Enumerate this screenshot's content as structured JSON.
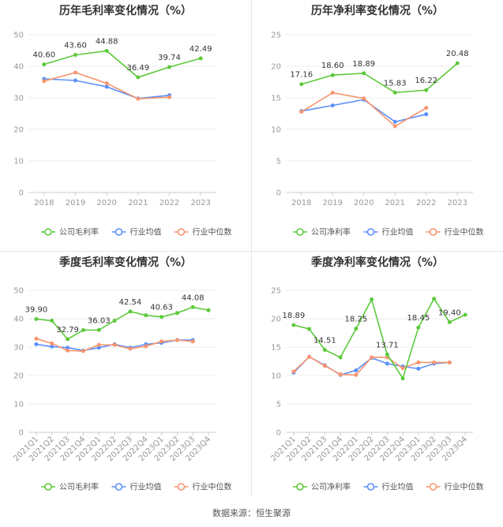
{
  "source_text": "数据来源：恒生聚源",
  "colors": {
    "company": "#5cc93b",
    "industry_avg": "#5b8ff9",
    "industry_median": "#f7956f",
    "grid": "#ececec",
    "axis": "#cccccc"
  },
  "chart_data": [
    {
      "type": "line",
      "title": "历年毛利率变化情况（%）",
      "categories": [
        "2018",
        "2019",
        "2020",
        "2021",
        "2022",
        "2023"
      ],
      "ylim": [
        0,
        50
      ],
      "yticks": [
        0,
        10,
        20,
        30,
        40,
        50
      ],
      "grid": true,
      "legend_position": "bottom",
      "series": [
        {
          "name": "公司毛利率",
          "color": "#5cc93b",
          "values": [
            40.6,
            43.6,
            44.88,
            36.49,
            39.74,
            42.49
          ],
          "labels": [
            "40.60",
            "43.60",
            "44.88",
            "36.49",
            "39.74",
            "42.49"
          ]
        },
        {
          "name": "行业均值",
          "color": "#5b8ff9",
          "values": [
            36.0,
            35.5,
            33.5,
            29.8,
            30.8,
            null
          ]
        },
        {
          "name": "行业中位数",
          "color": "#f7956f",
          "values": [
            35.3,
            38.0,
            34.6,
            29.7,
            30.2,
            null
          ]
        }
      ]
    },
    {
      "type": "line",
      "title": "历年净利率变化情况（%）",
      "categories": [
        "2018",
        "2019",
        "2020",
        "2021",
        "2022",
        "2023"
      ],
      "ylim": [
        0,
        25
      ],
      "yticks": [
        0,
        5,
        10,
        15,
        20,
        25
      ],
      "grid": true,
      "legend_position": "bottom",
      "series": [
        {
          "name": "公司净利率",
          "color": "#5cc93b",
          "values": [
            17.16,
            18.6,
            18.89,
            15.83,
            16.22,
            20.48
          ],
          "labels": [
            "17.16",
            "18.60",
            "18.89",
            "15.83",
            "16.22",
            "20.48"
          ]
        },
        {
          "name": "行业均值",
          "color": "#5b8ff9",
          "values": [
            12.9,
            13.8,
            14.7,
            11.2,
            12.4,
            null
          ]
        },
        {
          "name": "行业中位数",
          "color": "#f7956f",
          "values": [
            12.8,
            15.8,
            14.9,
            10.5,
            13.4,
            null
          ]
        }
      ]
    },
    {
      "type": "line",
      "title": "季度毛利率变化情况（%）",
      "categories": [
        "2021Q1",
        "2021Q2",
        "2021Q3",
        "2021Q4",
        "2022Q1",
        "2022Q2",
        "2022Q3",
        "2022Q4",
        "2023Q1",
        "2023Q2",
        "2023Q3",
        "2023Q4"
      ],
      "ylim": [
        0,
        50
      ],
      "yticks": [
        0,
        10,
        20,
        30,
        40,
        50
      ],
      "grid": true,
      "legend_position": "bottom",
      "series": [
        {
          "name": "公司毛利率",
          "color": "#5cc93b",
          "values": [
            39.9,
            39.3,
            32.79,
            36.0,
            36.03,
            39.3,
            42.54,
            41.2,
            40.63,
            42.0,
            44.08,
            43.0
          ],
          "labels": [
            "39.90",
            "",
            "32.79",
            "",
            "36.03",
            "",
            "42.54",
            "",
            "40.63",
            "",
            "44.08",
            ""
          ]
        },
        {
          "name": "行业均值",
          "color": "#5b8ff9",
          "values": [
            31.0,
            30.2,
            29.8,
            28.8,
            29.8,
            31.0,
            29.8,
            31.0,
            31.5,
            32.5,
            32.5,
            null
          ]
        },
        {
          "name": "行业中位数",
          "color": "#f7956f",
          "values": [
            33.0,
            31.3,
            28.8,
            28.6,
            30.8,
            30.8,
            29.4,
            30.3,
            32.0,
            32.5,
            32.0,
            null
          ]
        }
      ]
    },
    {
      "type": "line",
      "title": "季度净利率变化情况（%）",
      "categories": [
        "2021Q1",
        "2021Q2",
        "2021Q3",
        "2021Q4",
        "2022Q1",
        "2022Q2",
        "2022Q3",
        "2022Q4",
        "2023Q1",
        "2023Q2",
        "2023Q3",
        "2023Q4"
      ],
      "ylim": [
        0,
        25
      ],
      "yticks": [
        0,
        5,
        10,
        15,
        20,
        25
      ],
      "grid": true,
      "legend_position": "bottom",
      "series": [
        {
          "name": "公司净利率",
          "color": "#5cc93b",
          "values": [
            18.89,
            18.2,
            14.51,
            13.2,
            18.25,
            23.4,
            13.71,
            9.5,
            18.45,
            23.5,
            19.4,
            20.7
          ],
          "labels": [
            "18.89",
            "",
            "14.51",
            "",
            "18.25",
            "",
            "13.71",
            "",
            "18.45",
            "",
            "19.40",
            ""
          ]
        },
        {
          "name": "行业均值",
          "color": "#5b8ff9",
          "values": [
            10.5,
            13.3,
            11.8,
            10.1,
            10.9,
            13.1,
            12.1,
            11.6,
            11.2,
            12.1,
            12.3,
            null
          ]
        },
        {
          "name": "行业中位数",
          "color": "#f7956f",
          "values": [
            10.7,
            13.3,
            11.7,
            10.2,
            10.1,
            13.2,
            13.2,
            11.3,
            12.3,
            12.3,
            12.3,
            null
          ]
        }
      ]
    }
  ]
}
